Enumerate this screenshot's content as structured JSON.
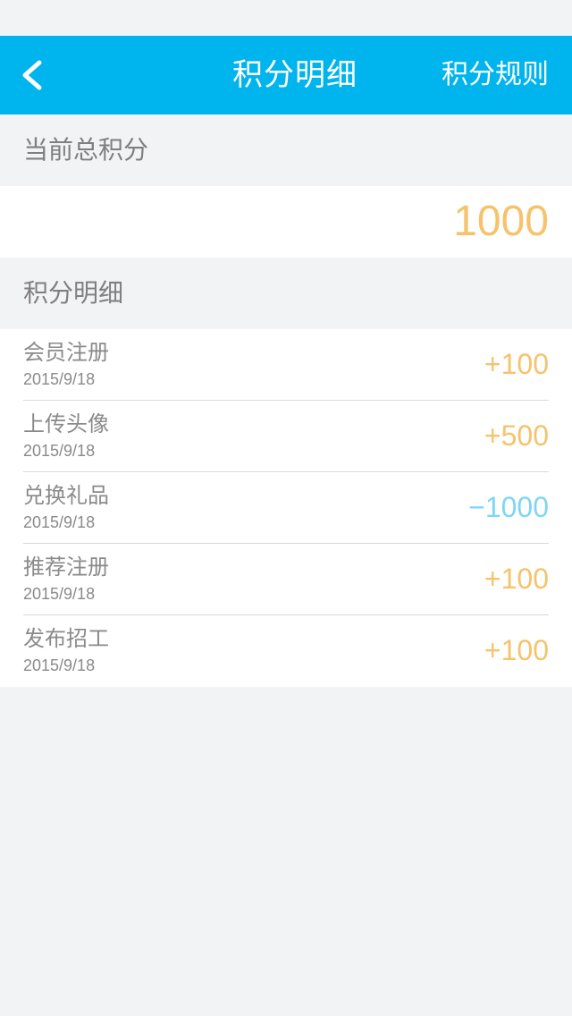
{
  "header": {
    "title": "积分明细",
    "rules_label": "积分规则",
    "back_icon": "chevron-left-icon",
    "background": "#00b4ed"
  },
  "total": {
    "label": "当前总积分",
    "value": "1000",
    "color": "#f6c36c"
  },
  "details": {
    "label": "积分明细",
    "items": [
      {
        "name": "会员注册",
        "date": "2015/9/18",
        "points": "+100",
        "color": "#f6c36c"
      },
      {
        "name": "上传头像",
        "date": "2015/9/18",
        "points": "+500",
        "color": "#f6c36c"
      },
      {
        "name": "兑换礼品",
        "date": "2015/9/18",
        "points": "−1000",
        "color": "#7fd6f4"
      },
      {
        "name": "推荐注册",
        "date": "2015/9/18",
        "points": "+100",
        "color": "#f6c36c"
      },
      {
        "name": "发布招工",
        "date": "2015/9/18",
        "points": "+100",
        "color": "#f6c36c"
      }
    ]
  }
}
